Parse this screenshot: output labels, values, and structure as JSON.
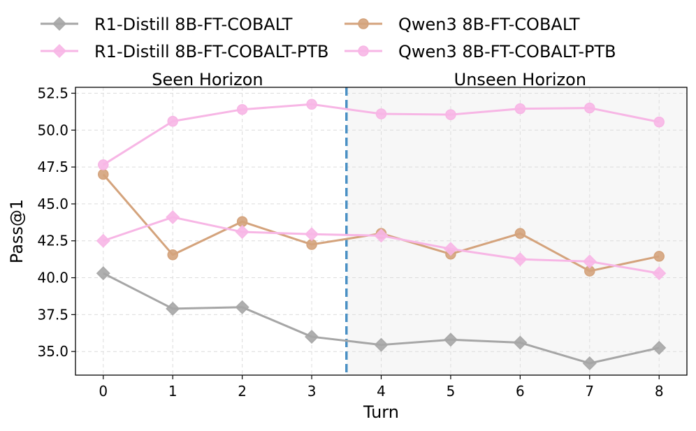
{
  "chart_data": {
    "type": "line",
    "xlabel": "Turn",
    "ylabel": "Pass@1",
    "x": [
      0,
      1,
      2,
      3,
      4,
      5,
      6,
      7,
      8
    ],
    "xlim": [
      -0.4,
      8.4
    ],
    "ylim": [
      33.4,
      52.9
    ],
    "xticks": [
      "0",
      "1",
      "2",
      "3",
      "4",
      "5",
      "6",
      "7",
      "8"
    ],
    "yticks": [
      "35.0",
      "37.5",
      "40.0",
      "42.5",
      "45.0",
      "47.5",
      "50.0",
      "52.5"
    ],
    "grid": true,
    "divider": {
      "x": 3.5,
      "color": "#4a90c4"
    },
    "shaded_region": {
      "from": 3.5,
      "color": "#f7f7f7"
    },
    "region_labels": {
      "seen": "Seen Horizon",
      "unseen": "Unseen Horizon"
    },
    "legend_position": "top",
    "series": [
      {
        "name": "R1-Distill 8B-FT-COBALT",
        "color": "#a6a6a6",
        "marker": "diamond",
        "values": [
          40.3,
          37.9,
          38.0,
          36.0,
          35.45,
          35.8,
          35.6,
          34.2,
          35.25
        ]
      },
      {
        "name": "Qwen3 8B-FT-COBALT",
        "color": "#d4a37c",
        "marker": "circle",
        "values": [
          47.0,
          41.55,
          43.8,
          42.25,
          43.0,
          41.6,
          43.0,
          40.45,
          41.45
        ]
      },
      {
        "name": "R1-Distill 8B-FT-COBALT-PTB",
        "color": "#f7b6e5",
        "marker": "diamond",
        "values": [
          42.5,
          44.1,
          43.1,
          42.95,
          42.85,
          41.95,
          41.25,
          41.1,
          40.3
        ]
      },
      {
        "name": "Qwen3 8B-FT-COBALT-PTB",
        "color": "#f7b6e5",
        "marker": "circle",
        "values": [
          47.65,
          50.6,
          51.4,
          51.75,
          51.1,
          51.05,
          51.45,
          51.5,
          50.55
        ]
      }
    ]
  }
}
